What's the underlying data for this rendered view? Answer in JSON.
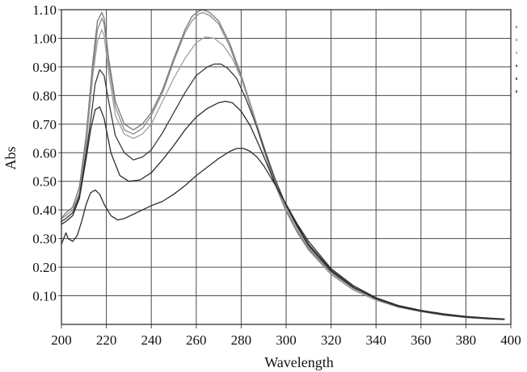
{
  "chart_data": {
    "type": "line",
    "title": "",
    "xlabel": "Wavelength",
    "ylabel": "Abs",
    "xlim": [
      200,
      400
    ],
    "ylim": [
      0.0,
      1.1
    ],
    "x_ticks": [
      "200",
      "220",
      "240",
      "260",
      "280",
      "300",
      "320",
      "340",
      "360",
      "380",
      "400"
    ],
    "y_ticks": [
      "0.10",
      "0.20",
      "0.30",
      "0.40",
      "0.50",
      "0.60",
      "0.70",
      "0.80",
      "0.90",
      "1.00",
      "1.10"
    ],
    "grid": true,
    "series": [
      {
        "color": "#777777",
        "x": [
          200,
          202,
          205,
          208,
          211,
          214,
          216,
          218,
          219,
          221,
          224,
          228,
          232,
          236,
          240,
          245,
          250,
          255,
          258,
          261,
          263,
          266,
          270,
          275,
          280,
          285,
          290,
          295,
          300,
          305,
          310,
          320,
          330,
          340,
          350,
          360,
          370,
          380,
          390,
          397
        ],
        "y": [
          0.37,
          0.39,
          0.41,
          0.48,
          0.66,
          0.92,
          1.06,
          1.09,
          1.07,
          0.93,
          0.78,
          0.7,
          0.68,
          0.7,
          0.74,
          0.82,
          0.93,
          1.03,
          1.075,
          1.095,
          1.1,
          1.09,
          1.06,
          0.98,
          0.87,
          0.75,
          0.62,
          0.5,
          0.4,
          0.325,
          0.265,
          0.18,
          0.125,
          0.09,
          0.06,
          0.045,
          0.033,
          0.025,
          0.02,
          0.018
        ]
      },
      {
        "color": "#8a8a8a",
        "x": [
          200,
          202,
          205,
          208,
          211,
          214,
          216,
          218,
          219,
          221,
          224,
          228,
          232,
          236,
          240,
          245,
          250,
          255,
          258,
          261,
          263,
          266,
          270,
          275,
          280,
          285,
          290,
          295,
          300,
          305,
          310,
          320,
          330,
          340,
          350,
          360,
          370,
          380,
          390,
          397
        ],
        "y": [
          0.37,
          0.38,
          0.4,
          0.46,
          0.64,
          0.89,
          1.03,
          1.07,
          1.05,
          0.91,
          0.76,
          0.68,
          0.665,
          0.685,
          0.73,
          0.81,
          0.92,
          1.02,
          1.06,
          1.085,
          1.09,
          1.08,
          1.05,
          0.97,
          0.86,
          0.74,
          0.61,
          0.49,
          0.395,
          0.32,
          0.26,
          0.175,
          0.12,
          0.085,
          0.06,
          0.045,
          0.032,
          0.024,
          0.019,
          0.017
        ]
      },
      {
        "color": "#a0a0a0",
        "x": [
          200,
          202,
          205,
          208,
          211,
          214,
          216,
          218,
          219,
          221,
          224,
          228,
          232,
          236,
          240,
          245,
          250,
          255,
          260,
          264,
          268,
          272,
          276,
          280,
          285,
          290,
          295,
          300,
          305,
          310,
          320,
          330,
          340,
          350,
          360,
          370,
          380,
          390,
          397
        ],
        "y": [
          0.37,
          0.38,
          0.4,
          0.46,
          0.62,
          0.87,
          0.99,
          1.03,
          1.01,
          0.88,
          0.73,
          0.665,
          0.65,
          0.665,
          0.7,
          0.78,
          0.86,
          0.93,
          0.985,
          1.005,
          1.0,
          0.975,
          0.93,
          0.86,
          0.75,
          0.625,
          0.505,
          0.405,
          0.33,
          0.27,
          0.18,
          0.125,
          0.09,
          0.062,
          0.046,
          0.034,
          0.025,
          0.02,
          0.017
        ]
      },
      {
        "color": "#3a3a3a",
        "x": [
          200,
          202,
          205,
          208,
          211,
          213,
          215,
          217,
          219,
          221,
          224,
          228,
          232,
          236,
          240,
          245,
          250,
          255,
          260,
          265,
          268,
          271,
          274,
          278,
          282,
          286,
          290,
          295,
          300,
          305,
          310,
          320,
          330,
          340,
          350,
          360,
          370,
          380,
          390,
          397
        ],
        "y": [
          0.36,
          0.37,
          0.39,
          0.45,
          0.6,
          0.71,
          0.84,
          0.89,
          0.87,
          0.78,
          0.66,
          0.6,
          0.575,
          0.585,
          0.61,
          0.67,
          0.74,
          0.81,
          0.87,
          0.9,
          0.91,
          0.91,
          0.895,
          0.86,
          0.79,
          0.71,
          0.62,
          0.51,
          0.415,
          0.34,
          0.275,
          0.185,
          0.128,
          0.09,
          0.063,
          0.046,
          0.034,
          0.025,
          0.02,
          0.017
        ]
      },
      {
        "color": "#2a2a2a",
        "x": [
          200,
          202,
          205,
          208,
          211,
          213,
          215,
          217,
          219,
          222,
          226,
          230,
          235,
          240,
          245,
          250,
          255,
          260,
          265,
          270,
          273,
          276,
          280,
          284,
          288,
          292,
          296,
          300,
          305,
          310,
          320,
          330,
          340,
          350,
          360,
          370,
          380,
          390,
          397
        ],
        "y": [
          0.35,
          0.36,
          0.38,
          0.44,
          0.58,
          0.68,
          0.75,
          0.76,
          0.72,
          0.6,
          0.52,
          0.5,
          0.505,
          0.53,
          0.575,
          0.625,
          0.68,
          0.725,
          0.755,
          0.775,
          0.78,
          0.775,
          0.745,
          0.695,
          0.625,
          0.55,
          0.475,
          0.42,
          0.345,
          0.28,
          0.19,
          0.13,
          0.09,
          0.064,
          0.047,
          0.035,
          0.026,
          0.021,
          0.018
        ]
      },
      {
        "color": "#2e2e2e",
        "x": [
          200,
          202,
          203,
          205,
          207,
          209,
          211,
          213,
          215,
          217,
          219,
          222,
          225,
          228,
          232,
          236,
          240,
          245,
          250,
          255,
          260,
          265,
          270,
          275,
          278,
          281,
          284,
          287,
          290,
          295,
          300,
          305,
          310,
          320,
          330,
          340,
          350,
          360,
          370,
          380,
          390,
          397
        ],
        "y": [
          0.28,
          0.32,
          0.3,
          0.29,
          0.31,
          0.36,
          0.42,
          0.46,
          0.47,
          0.455,
          0.42,
          0.38,
          0.365,
          0.37,
          0.385,
          0.4,
          0.415,
          0.43,
          0.455,
          0.485,
          0.52,
          0.55,
          0.58,
          0.605,
          0.615,
          0.615,
          0.605,
          0.585,
          0.555,
          0.49,
          0.42,
          0.35,
          0.29,
          0.195,
          0.135,
          0.093,
          0.066,
          0.049,
          0.037,
          0.028,
          0.022,
          0.019
        ]
      }
    ]
  }
}
